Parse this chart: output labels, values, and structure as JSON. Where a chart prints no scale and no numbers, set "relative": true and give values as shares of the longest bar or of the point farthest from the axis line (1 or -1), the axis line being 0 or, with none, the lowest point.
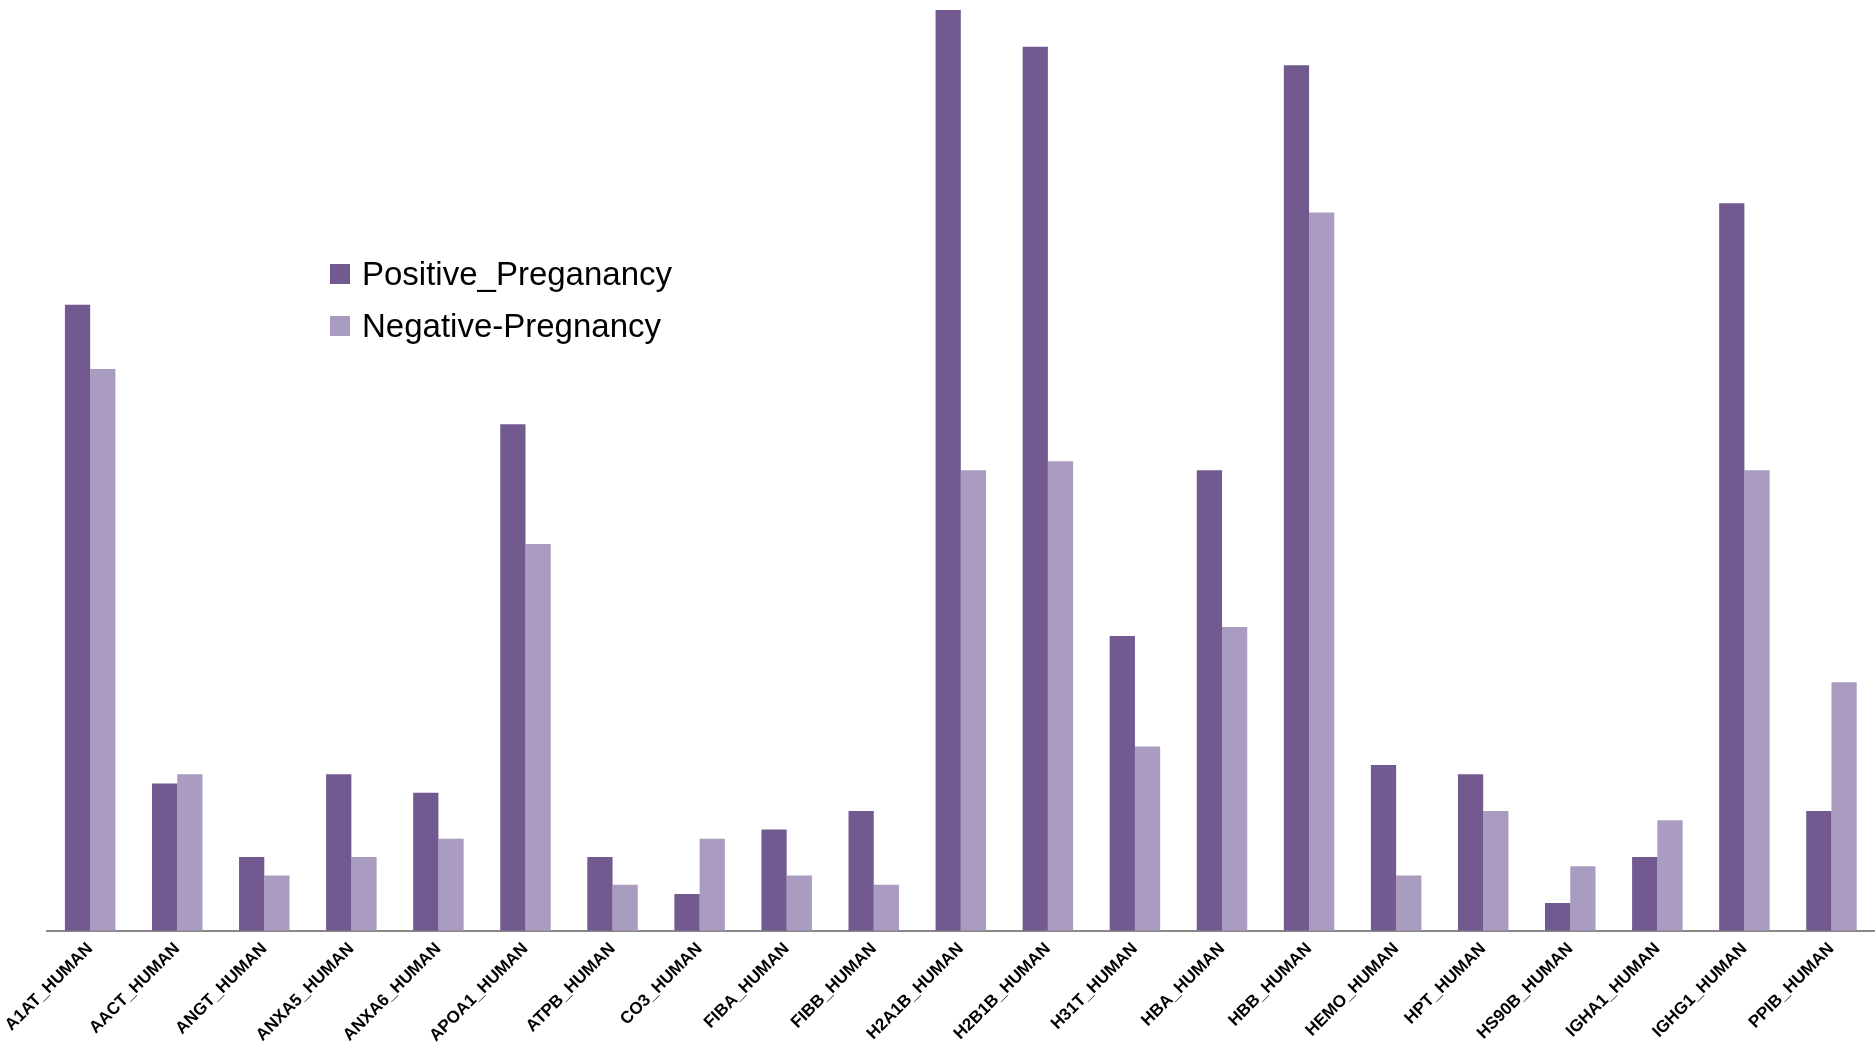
{
  "chart_data": {
    "type": "bar",
    "relative": true,
    "legend": "top left",
    "grid": false,
    "categories": [
      "A1AT_HUMAN",
      "AACT_HUMAN",
      "ANGT_HUMAN",
      "ANXA5_HUMAN",
      "ANXA6_HUMAN",
      "APOA1_HUMAN",
      "ATPB_HUMAN",
      "CO3_HUMAN",
      "FIBA_HUMAN",
      "FIBB_HUMAN",
      "H2A1B_HUMAN",
      "H2B1B_HUMAN",
      "H31T_HUMAN",
      "HBA_HUMAN",
      "HBB_HUMAN",
      "HEMO_HUMAN",
      "HPT_HUMAN",
      "HS90B_HUMAN",
      "IGHA1_HUMAN",
      "IGHG1_HUMAN",
      "PPIB_HUMAN"
    ],
    "series": [
      {
        "name": "Positive_Preganancy",
        "color": "#725a91",
        "values": [
          0.68,
          0.16,
          0.08,
          0.17,
          0.15,
          0.55,
          0.08,
          0.04,
          0.11,
          0.13,
          1,
          0.96,
          0.32,
          0.5,
          0.94,
          0.18,
          0.17,
          0.03,
          0.08,
          0.79,
          0.13
        ]
      },
      {
        "name": "Negative-Pregnancy",
        "color": "#aa9cc0",
        "values": [
          0.61,
          0.17,
          0.06,
          0.08,
          0.1,
          0.42,
          0.05,
          0.1,
          0.06,
          0.05,
          0.5,
          0.51,
          0.2,
          0.33,
          0.78,
          0.06,
          0.13,
          0.07,
          0.12,
          0.5,
          0.27
        ]
      }
    ]
  }
}
